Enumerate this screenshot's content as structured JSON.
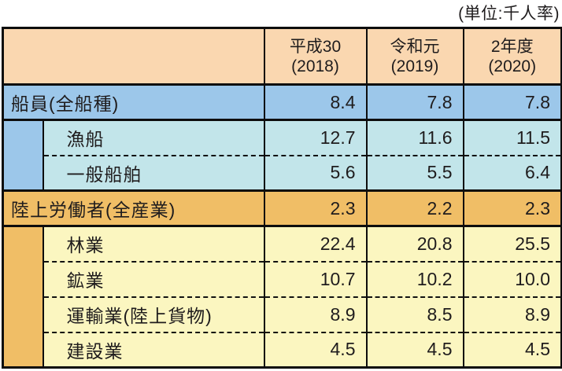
{
  "unit_note": "(単位:千人率)",
  "table": {
    "columns": [
      {
        "era": "平成30",
        "year": "(2018)"
      },
      {
        "era": "令和元",
        "year": "(2019)"
      },
      {
        "era": "2年度",
        "year": "(2020)"
      }
    ],
    "rows": [
      {
        "label": "船員(全船種)",
        "values": [
          "8.4",
          "7.8",
          "7.8"
        ]
      },
      {
        "label": "漁船",
        "values": [
          "12.7",
          "11.6",
          "11.5"
        ]
      },
      {
        "label": "一般船舶",
        "values": [
          "5.6",
          "5.5",
          "6.4"
        ]
      },
      {
        "label": "陸上労働者(全産業)",
        "values": [
          "2.3",
          "2.2",
          "2.3"
        ]
      },
      {
        "label": "林業",
        "values": [
          "22.4",
          "20.8",
          "25.5"
        ]
      },
      {
        "label": "鉱業",
        "values": [
          "10.7",
          "10.2",
          "10.0"
        ]
      },
      {
        "label": "運輸業(陸上貨物)",
        "values": [
          "8.9",
          "8.5",
          "8.9"
        ]
      },
      {
        "label": "建設業",
        "values": [
          "4.5",
          "4.5",
          "4.5"
        ]
      }
    ]
  },
  "chart_data": {
    "type": "table",
    "title": "",
    "unit": "千人率",
    "columns": [
      "平成30(2018)",
      "令和元(2019)",
      "2年度(2020)"
    ],
    "rows": [
      {
        "label": "船員(全船種)",
        "group": "船員",
        "level": 0,
        "values": [
          8.4,
          7.8,
          7.8
        ]
      },
      {
        "label": "漁船",
        "group": "船員",
        "level": 1,
        "values": [
          12.7,
          11.6,
          11.5
        ]
      },
      {
        "label": "一般船舶",
        "group": "船員",
        "level": 1,
        "values": [
          5.6,
          5.5,
          6.4
        ]
      },
      {
        "label": "陸上労働者(全産業)",
        "group": "陸上労働者",
        "level": 0,
        "values": [
          2.3,
          2.2,
          2.3
        ]
      },
      {
        "label": "林業",
        "group": "陸上労働者",
        "level": 1,
        "values": [
          22.4,
          20.8,
          25.5
        ]
      },
      {
        "label": "鉱業",
        "group": "陸上労働者",
        "level": 1,
        "values": [
          10.7,
          10.2,
          10.0
        ]
      },
      {
        "label": "運輸業(陸上貨物)",
        "group": "陸上労働者",
        "level": 1,
        "values": [
          8.9,
          8.5,
          8.9
        ]
      },
      {
        "label": "建設業",
        "group": "陸上労働者",
        "level": 1,
        "values": [
          4.5,
          4.5,
          4.5
        ]
      }
    ]
  },
  "colors": {
    "header_bg": "#fad7b0",
    "seafarer_row_bg": "#9cc7ea",
    "seafarer_sub_bg": "#c2e5ea",
    "land_row_bg": "#f0be66",
    "land_sub_bg": "#fbf6c0",
    "border": "#0d0d0d",
    "text": "#1f1c1d"
  }
}
